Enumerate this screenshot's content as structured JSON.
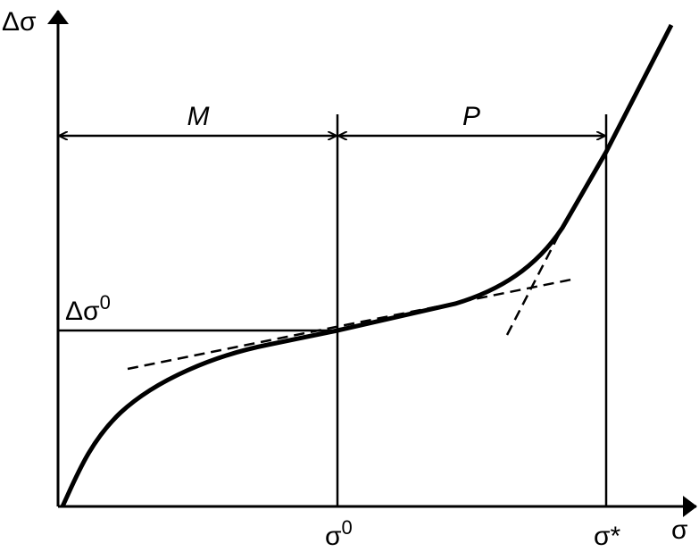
{
  "axes": {
    "y_label": "Δσ",
    "x_label": "σ"
  },
  "regions": [
    {
      "label": "M"
    },
    {
      "label": "P"
    }
  ],
  "levels": {
    "y_marker": {
      "base": "Δσ",
      "sup": "0"
    },
    "x_marker_1": {
      "base": "σ",
      "sup": "0"
    },
    "x_marker_2": "σ*"
  }
}
